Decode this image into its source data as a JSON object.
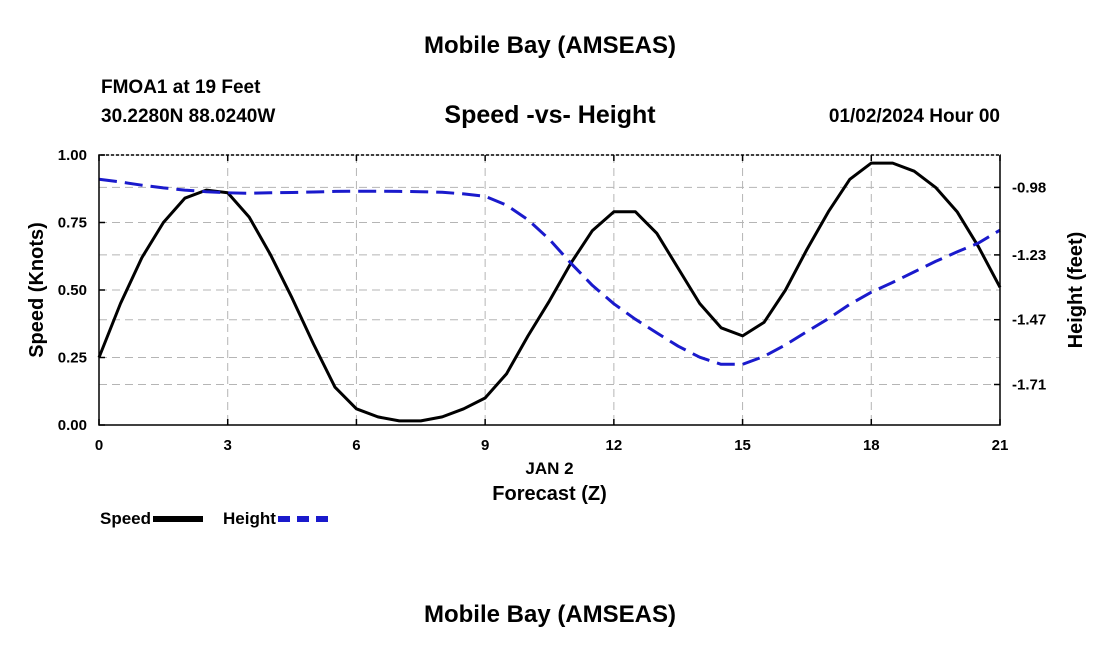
{
  "header": {
    "title_top": "Mobile Bay (AMSEAS)",
    "title_bottom": "Mobile Bay (AMSEAS)",
    "station": "FMOA1 at 19 Feet",
    "coords": "30.2280N  88.0240W",
    "datetime": "01/02/2024 Hour 00"
  },
  "chart_data": {
    "type": "line",
    "title": "Speed -vs- Height",
    "xlabel": "Forecast (Z)",
    "xlabel_date": "JAN 2",
    "ylabel": "Speed (Knots)",
    "y2label": "Height (feet)",
    "xlim": [
      0,
      21
    ],
    "ylim": [
      0,
      1
    ],
    "y2lim": [
      -1.86,
      -0.86
    ],
    "xticks": [
      {
        "v": 0,
        "label": "0"
      },
      {
        "v": 3,
        "label": "3"
      },
      {
        "v": 6,
        "label": "6"
      },
      {
        "v": 9,
        "label": "9"
      },
      {
        "v": 12,
        "label": "12"
      },
      {
        "v": 15,
        "label": "15"
      },
      {
        "v": 18,
        "label": "18"
      },
      {
        "v": 21,
        "label": "21"
      }
    ],
    "yticks": [
      {
        "v": 0,
        "label": "0.00"
      },
      {
        "v": 0.25,
        "label": "0.25"
      },
      {
        "v": 0.5,
        "label": "0.50"
      },
      {
        "v": 0.75,
        "label": "0.75"
      },
      {
        "v": 1,
        "label": "1.00"
      }
    ],
    "y2ticks": [
      {
        "v": -0.98,
        "label": "-0.98"
      },
      {
        "v": -1.23,
        "label": "-1.23"
      },
      {
        "v": -1.47,
        "label": "-1.47"
      },
      {
        "v": -1.71,
        "label": "-1.71"
      }
    ],
    "grid": true,
    "legend": "bottom-left",
    "series": [
      {
        "name": "Speed",
        "axis": "left",
        "color": "#000000",
        "dash": false,
        "x": [
          0,
          0.5,
          1,
          1.5,
          2,
          2.5,
          3,
          3.5,
          4,
          4.5,
          5,
          5.5,
          6,
          6.5,
          7,
          7.5,
          8,
          8.5,
          9,
          9.5,
          10,
          10.5,
          11,
          11.5,
          12,
          12.5,
          13,
          13.5,
          14,
          14.5,
          15,
          15.5,
          16,
          16.5,
          17,
          17.5,
          18,
          18.5,
          19,
          19.5,
          20,
          20.5,
          21
        ],
        "y": [
          0.25,
          0.45,
          0.62,
          0.75,
          0.84,
          0.87,
          0.86,
          0.77,
          0.63,
          0.47,
          0.3,
          0.14,
          0.06,
          0.03,
          0.015,
          0.015,
          0.03,
          0.06,
          0.1,
          0.19,
          0.33,
          0.46,
          0.6,
          0.72,
          0.79,
          0.79,
          0.71,
          0.58,
          0.45,
          0.36,
          0.33,
          0.38,
          0.5,
          0.65,
          0.79,
          0.91,
          0.97,
          0.97,
          0.94,
          0.88,
          0.79,
          0.66,
          0.51
        ]
      },
      {
        "name": "Height",
        "axis": "right",
        "color": "#1a1acc",
        "dash": true,
        "x": [
          0,
          0.5,
          1,
          1.5,
          2,
          2.5,
          3,
          3.5,
          4,
          4.5,
          5,
          5.5,
          6,
          6.5,
          7,
          7.5,
          8,
          8.5,
          9,
          9.5,
          10,
          10.5,
          11,
          11.5,
          12,
          12.5,
          13,
          13.5,
          14,
          14.5,
          15,
          15.5,
          16,
          16.5,
          17,
          17.5,
          18,
          18.5,
          19,
          19.5,
          20,
          20.5,
          21
        ],
        "y": [
          -0.95,
          -0.96,
          -0.972,
          -0.982,
          -0.99,
          -0.996,
          -1.0,
          -1.002,
          -1.0,
          -0.999,
          -0.997,
          -0.995,
          -0.994,
          -0.994,
          -0.995,
          -0.996,
          -0.998,
          -1.004,
          -1.013,
          -1.046,
          -1.1,
          -1.173,
          -1.261,
          -1.343,
          -1.411,
          -1.468,
          -1.519,
          -1.568,
          -1.609,
          -1.635,
          -1.635,
          -1.606,
          -1.563,
          -1.514,
          -1.466,
          -1.413,
          -1.368,
          -1.332,
          -1.293,
          -1.254,
          -1.219,
          -1.186,
          -1.138
        ]
      }
    ]
  }
}
